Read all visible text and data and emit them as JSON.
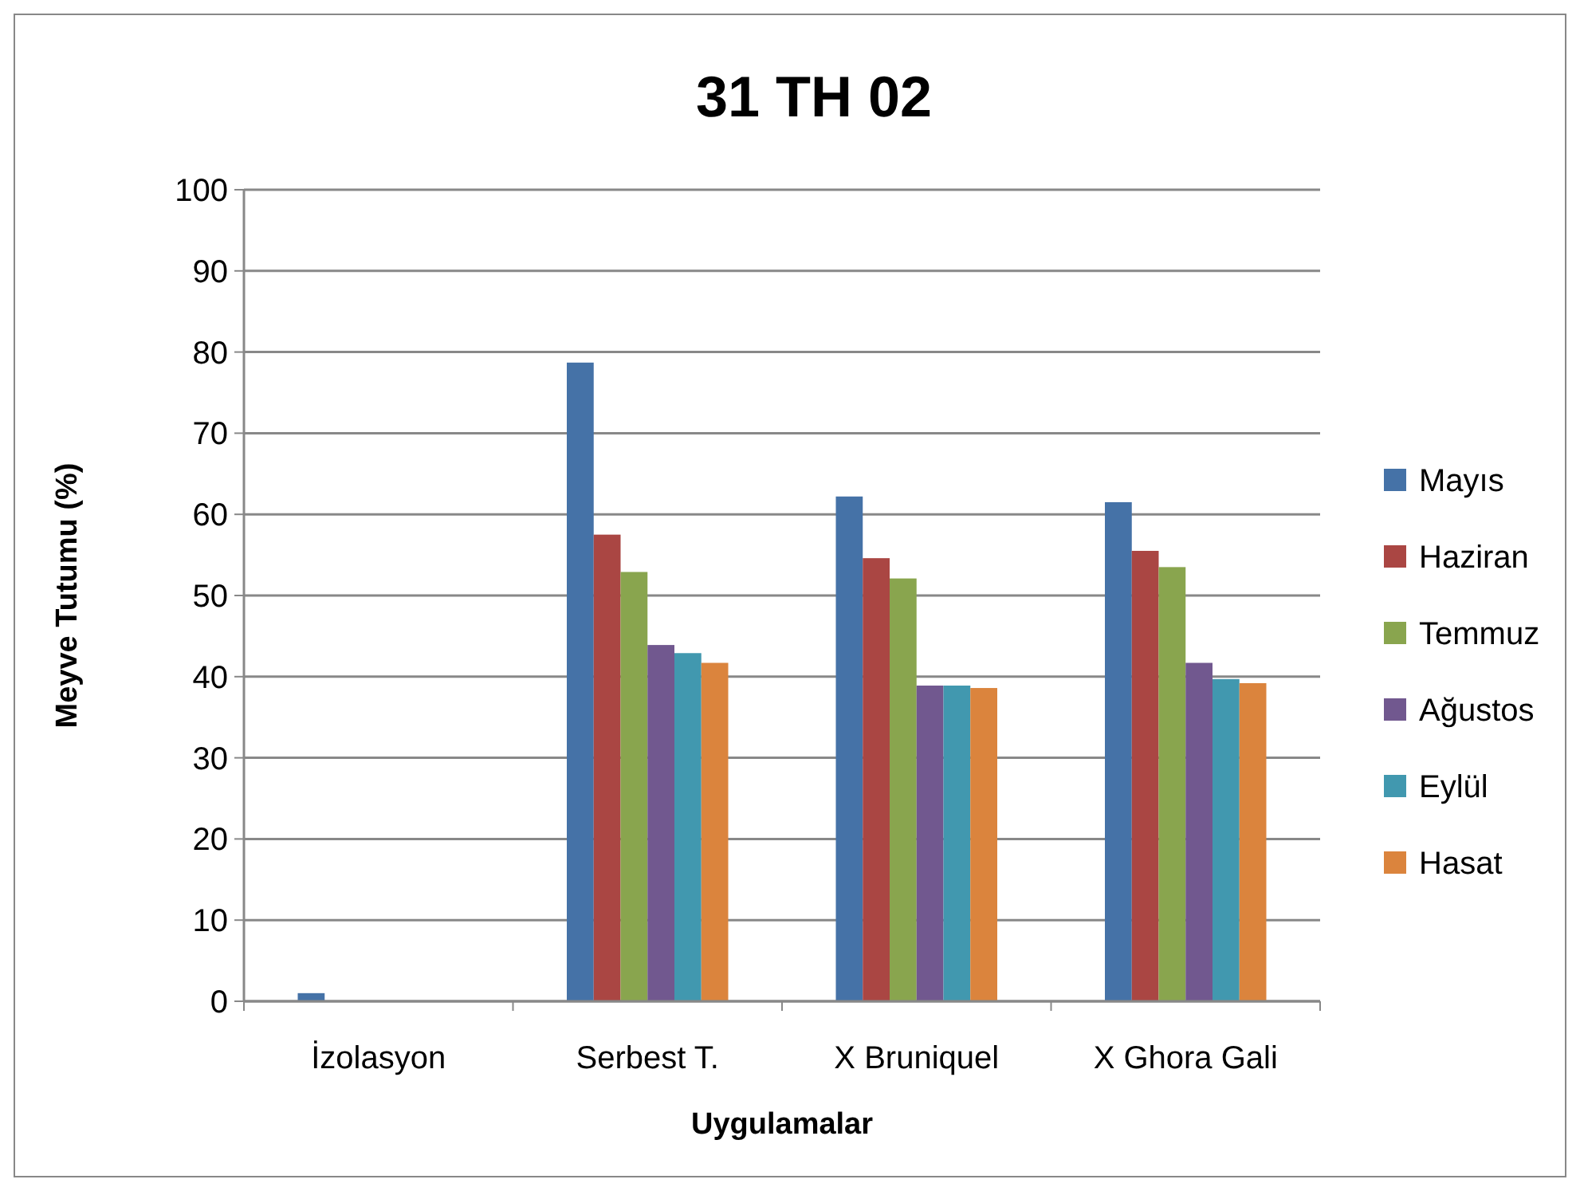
{
  "chart_data": {
    "type": "bar",
    "title": "31 TH 02",
    "xlabel": "Uygulamalar",
    "ylabel": "Meyve Tutumu (%)",
    "categories": [
      "İzolasyon",
      "Serbest T.",
      "X Bruniquel",
      "X Ghora Gali"
    ],
    "series": [
      {
        "name": "Mayıs",
        "color": "#4572a7",
        "values": [
          1.0,
          78.7,
          62.2,
          61.5
        ]
      },
      {
        "name": "Haziran",
        "color": "#aa4643",
        "values": [
          0,
          57.5,
          54.6,
          55.5
        ]
      },
      {
        "name": "Temmuz",
        "color": "#89a54e",
        "values": [
          0,
          52.9,
          52.1,
          53.5
        ]
      },
      {
        "name": "Ağustos",
        "color": "#71588f",
        "values": [
          0,
          43.9,
          38.9,
          41.7
        ]
      },
      {
        "name": "Eylül",
        "color": "#4198af",
        "values": [
          0,
          42.9,
          38.9,
          39.7
        ]
      },
      {
        "name": "Hasat",
        "color": "#db843d",
        "values": [
          0,
          41.7,
          38.6,
          39.2
        ]
      }
    ],
    "ylim": [
      0,
      100
    ],
    "yticks": [
      0,
      10,
      20,
      30,
      40,
      50,
      60,
      70,
      80,
      90,
      100
    ],
    "grid": "y",
    "legend": "right"
  }
}
